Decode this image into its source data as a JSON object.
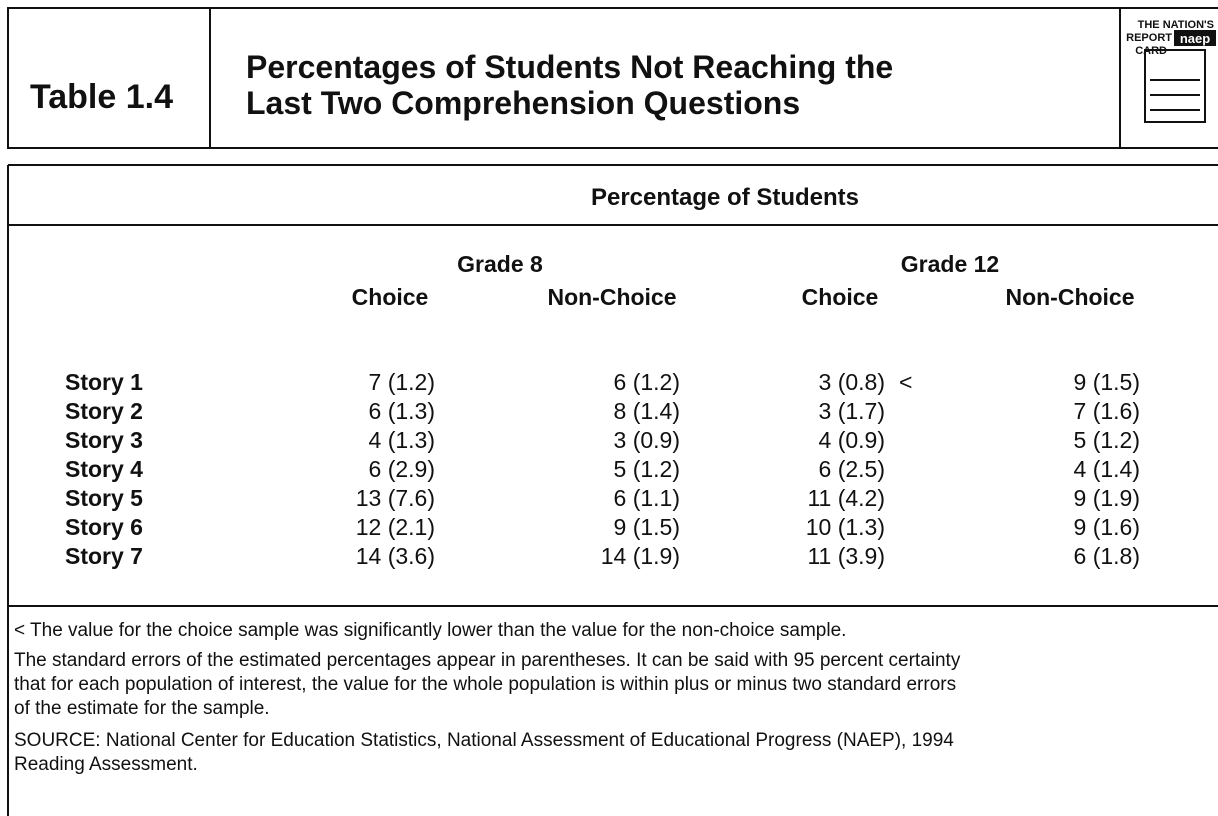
{
  "header": {
    "table_number": "Table 1.4",
    "title": [
      "Percentages of Students Not Reaching the",
      "Last Two Comprehension Questions"
    ],
    "logo": [
      "THE NATION'S",
      "REPORT",
      "CARD",
      "naep"
    ]
  },
  "table": {
    "heading": "Percentage of Students",
    "groups": [
      "Grade 8",
      "Grade 12"
    ],
    "columns": [
      "Choice",
      "Non-Choice",
      "Choice",
      "Non-Choice"
    ],
    "rows": [
      {
        "label": "Story 1",
        "cells": [
          "7 (1.2)",
          "6 (1.2)",
          {
            "text": "3 (0.8)",
            "flag": "<"
          },
          "9 (1.5)"
        ]
      },
      {
        "label": "Story 2",
        "cells": [
          "6 (1.3)",
          "8 (1.4)",
          "3 (1.7)",
          "7 (1.6)"
        ]
      },
      {
        "label": "Story 3",
        "cells": [
          "4 (1.3)",
          "3 (0.9)",
          "4 (0.9)",
          "5 (1.2)"
        ]
      },
      {
        "label": "Story 4",
        "cells": [
          "6 (2.9)",
          "5 (1.2)",
          "6 (2.5)",
          "4 (1.4)"
        ]
      },
      {
        "label": "Story 5",
        "cells": [
          "13 (7.6)",
          "6 (1.1)",
          "11 (4.2)",
          "9 (1.9)"
        ]
      },
      {
        "label": "Story 6",
        "cells": [
          "12 (2.1)",
          "9 (1.5)",
          "10 (1.3)",
          "9 (1.6)"
        ]
      },
      {
        "label": "Story 7",
        "cells": [
          "14 (3.6)",
          "14 (1.9)",
          "11 (3.9)",
          "6 (1.8)"
        ]
      }
    ]
  },
  "notes": [
    [
      "< The value for the choice sample was significantly lower than the value for the non-choice sample."
    ],
    [
      "The standard errors of the estimated percentages appear in parentheses. It can be said with 95 percent certainty",
      "that for each population of interest, the value for the whole population is within plus or minus two standard errors",
      "of the estimate for the sample."
    ],
    [
      "SOURCE: National Center for Education Statistics, National Assessment of Educational Progress (NAEP), 1994",
      "Reading Assessment."
    ]
  ]
}
